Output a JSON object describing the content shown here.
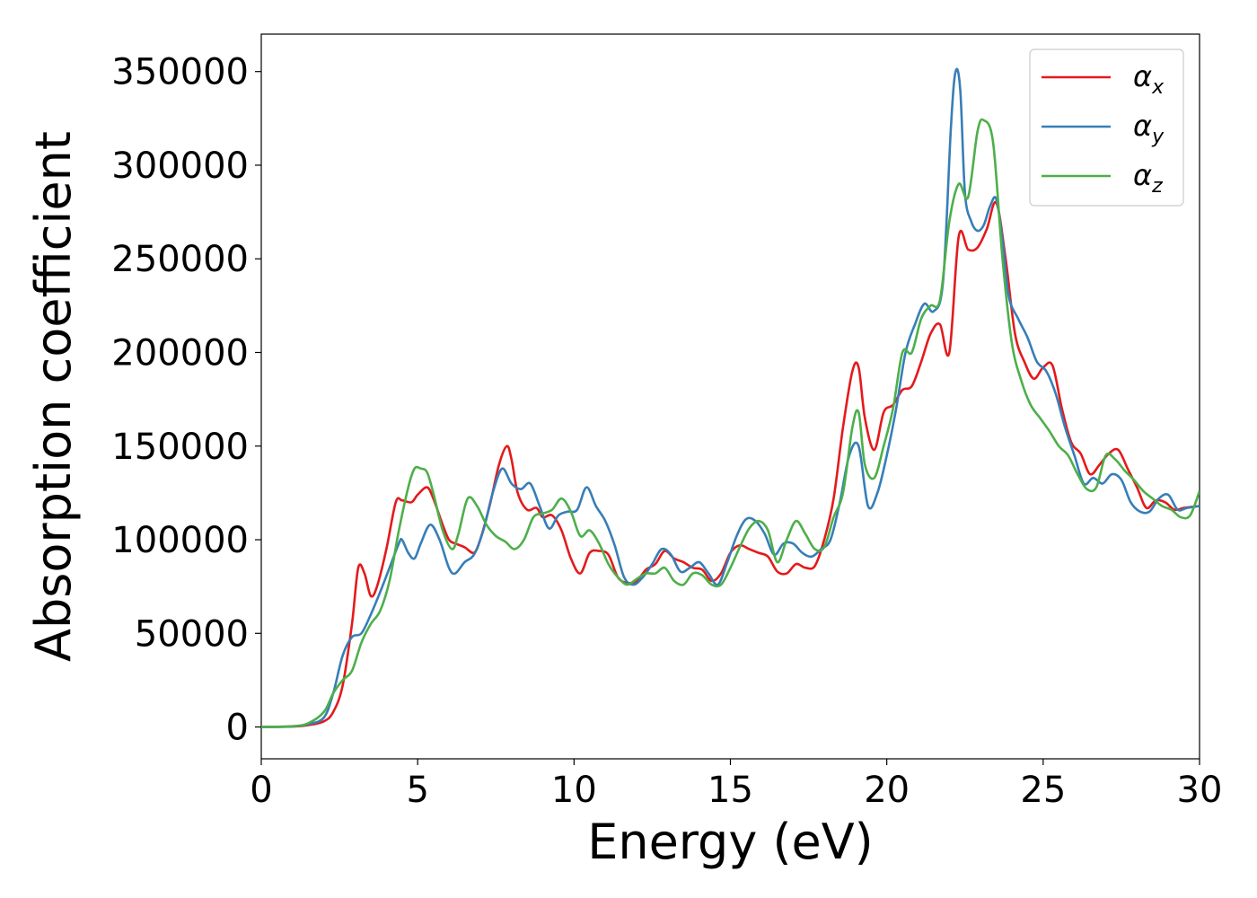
{
  "chart_data": {
    "type": "line",
    "title": "",
    "xlabel": "Energy (eV)",
    "ylabel": "Absorption coefficient",
    "xlim": [
      0,
      30
    ],
    "ylim": [
      -17000,
      370000
    ],
    "xticks": [
      0,
      5,
      10,
      15,
      20,
      25,
      30
    ],
    "yticks": [
      0,
      50000,
      100000,
      150000,
      200000,
      250000,
      300000,
      350000
    ],
    "xtick_labels": [
      "0",
      "5",
      "10",
      "15",
      "20",
      "25",
      "30"
    ],
    "ytick_labels": [
      "0",
      "50000",
      "100000",
      "150000",
      "200000",
      "250000",
      "300000",
      "350000"
    ],
    "grid": false,
    "legend_position": "top-right",
    "series": [
      {
        "name": "α",
        "subscript": "x",
        "color": "#e41a1c",
        "x": [
          0,
          1.0,
          1.5,
          2.0,
          2.3,
          2.6,
          2.9,
          3.1,
          3.3,
          3.5,
          3.7,
          4.0,
          4.3,
          4.5,
          4.8,
          5.0,
          5.3,
          5.5,
          5.8,
          6.0,
          6.2,
          6.5,
          6.8,
          7.0,
          7.3,
          7.6,
          7.85,
          8.0,
          8.2,
          8.5,
          8.8,
          9.0,
          9.3,
          9.6,
          9.9,
          10.2,
          10.5,
          10.8,
          11.1,
          11.4,
          11.7,
          12.0,
          12.3,
          12.6,
          12.9,
          13.2,
          13.5,
          13.8,
          14.1,
          14.4,
          14.7,
          15.0,
          15.3,
          15.6,
          15.9,
          16.2,
          16.5,
          16.8,
          17.1,
          17.4,
          17.7,
          18.0,
          18.3,
          18.6,
          18.9,
          19.1,
          19.3,
          19.6,
          19.9,
          20.2,
          20.5,
          20.8,
          21.1,
          21.4,
          21.7,
          22.0,
          22.3,
          22.6,
          22.9,
          23.2,
          23.5,
          23.8,
          24.1,
          24.4,
          24.7,
          25.0,
          25.3,
          25.6,
          25.9,
          26.2,
          26.5,
          26.8,
          27.1,
          27.4,
          27.7,
          28.0,
          28.3,
          28.6,
          28.9,
          29.2,
          29.5,
          30.0
        ],
        "values": [
          0,
          200,
          1000,
          3000,
          8000,
          22000,
          55000,
          85000,
          82000,
          70000,
          75000,
          95000,
          120000,
          121000,
          120000,
          124000,
          128000,
          122000,
          108000,
          100000,
          98000,
          96000,
          93000,
          100000,
          118000,
          140000,
          150000,
          143000,
          125000,
          116000,
          117000,
          112000,
          113000,
          105000,
          90000,
          82000,
          93000,
          94000,
          92000,
          80000,
          77000,
          78000,
          84000,
          87000,
          94000,
          90000,
          88000,
          85000,
          84000,
          78000,
          82000,
          93000,
          97000,
          95000,
          93000,
          91000,
          83000,
          82000,
          87000,
          85000,
          86000,
          100000,
          122000,
          160000,
          190000,
          192000,
          165000,
          148000,
          168000,
          172000,
          180000,
          182000,
          195000,
          210000,
          215000,
          200000,
          262000,
          255000,
          256000,
          266000,
          280000,
          250000,
          210000,
          195000,
          186000,
          192000,
          193000,
          170000,
          152000,
          146000,
          135000,
          140000,
          146000,
          148000,
          138000,
          128000,
          117000,
          121000,
          120000,
          116000,
          117000,
          118000
        ]
      },
      {
        "name": "α",
        "subscript": "y",
        "color": "#377eb8",
        "x": [
          0,
          1.0,
          1.5,
          2.0,
          2.3,
          2.6,
          2.9,
          3.2,
          3.5,
          3.8,
          4.1,
          4.4,
          4.5,
          4.7,
          4.9,
          5.1,
          5.4,
          5.7,
          6.0,
          6.2,
          6.5,
          6.8,
          7.1,
          7.4,
          7.7,
          8.0,
          8.3,
          8.6,
          8.9,
          9.2,
          9.5,
          9.8,
          10.1,
          10.4,
          10.7,
          11.0,
          11.3,
          11.6,
          11.9,
          12.2,
          12.5,
          12.8,
          13.1,
          13.4,
          13.7,
          14.0,
          14.3,
          14.6,
          14.9,
          15.2,
          15.5,
          15.8,
          16.1,
          16.4,
          16.7,
          17.0,
          17.3,
          17.6,
          17.9,
          18.2,
          18.5,
          18.8,
          19.1,
          19.4,
          19.7,
          20.0,
          20.3,
          20.6,
          20.9,
          21.2,
          21.5,
          21.8,
          22.05,
          22.2,
          22.35,
          22.5,
          22.7,
          22.9,
          23.1,
          23.3,
          23.5,
          23.7,
          23.9,
          24.2,
          24.5,
          24.8,
          25.1,
          25.4,
          25.7,
          26.0,
          26.3,
          26.6,
          26.9,
          27.2,
          27.5,
          27.8,
          28.1,
          28.4,
          28.7,
          29.0,
          29.3,
          29.6,
          30.0
        ],
        "values": [
          0,
          300,
          1500,
          5000,
          18000,
          38000,
          48000,
          50000,
          60000,
          72000,
          85000,
          98000,
          100000,
          93000,
          90000,
          98000,
          108000,
          100000,
          85000,
          82000,
          88000,
          92000,
          105000,
          125000,
          138000,
          130000,
          127000,
          130000,
          118000,
          106000,
          113000,
          115000,
          116000,
          128000,
          118000,
          110000,
          97000,
          80000,
          76000,
          80000,
          87000,
          95000,
          92000,
          83000,
          85000,
          88000,
          82000,
          76000,
          88000,
          102000,
          111000,
          110000,
          103000,
          92000,
          98000,
          98000,
          93000,
          91000,
          95000,
          100000,
          120000,
          145000,
          150000,
          118000,
          125000,
          145000,
          170000,
          200000,
          215000,
          226000,
          222000,
          238000,
          320000,
          350000,
          340000,
          285000,
          270000,
          265000,
          268000,
          278000,
          282000,
          260000,
          230000,
          218000,
          208000,
          195000,
          190000,
          178000,
          160000,
          145000,
          130000,
          133000,
          130000,
          135000,
          132000,
          120000,
          115000,
          115000,
          122000,
          124000,
          116000,
          117000,
          118000
        ]
      },
      {
        "name": "α",
        "subscript": "z",
        "color": "#4daf4a",
        "x": [
          0,
          1.0,
          1.5,
          2.0,
          2.3,
          2.6,
          2.9,
          3.2,
          3.5,
          3.8,
          4.1,
          4.4,
          4.7,
          4.9,
          5.1,
          5.3,
          5.5,
          5.8,
          6.1,
          6.3,
          6.6,
          6.9,
          7.2,
          7.5,
          7.8,
          8.1,
          8.4,
          8.7,
          9.0,
          9.3,
          9.6,
          9.9,
          10.2,
          10.5,
          10.8,
          11.1,
          11.4,
          11.7,
          12.0,
          12.3,
          12.6,
          12.9,
          13.2,
          13.5,
          13.8,
          14.1,
          14.4,
          14.7,
          15.0,
          15.3,
          15.6,
          15.9,
          16.2,
          16.5,
          16.8,
          17.1,
          17.4,
          17.7,
          18.0,
          18.3,
          18.6,
          18.9,
          19.1,
          19.3,
          19.6,
          19.9,
          20.2,
          20.5,
          20.8,
          21.1,
          21.4,
          21.7,
          22.0,
          22.3,
          22.6,
          22.9,
          23.1,
          23.4,
          23.7,
          24.0,
          24.3,
          24.6,
          24.9,
          25.2,
          25.5,
          25.8,
          26.1,
          26.4,
          26.7,
          27.0,
          27.3,
          27.6,
          27.9,
          28.2,
          28.5,
          28.8,
          29.1,
          29.4,
          29.7,
          30.0
        ],
        "values": [
          0,
          400,
          2000,
          8000,
          18000,
          25000,
          30000,
          45000,
          55000,
          62000,
          78000,
          105000,
          128000,
          138000,
          138000,
          136000,
          125000,
          105000,
          95000,
          103000,
          122000,
          118000,
          108000,
          102000,
          99000,
          95000,
          100000,
          112000,
          114000,
          116000,
          122000,
          115000,
          102000,
          105000,
          98000,
          87000,
          80000,
          76000,
          79000,
          82000,
          82000,
          85000,
          78000,
          76000,
          82000,
          81000,
          76000,
          76000,
          85000,
          96000,
          106000,
          110000,
          105000,
          88000,
          100000,
          110000,
          103000,
          95000,
          96000,
          112000,
          125000,
          160000,
          168000,
          140000,
          133000,
          150000,
          170000,
          200000,
          200000,
          218000,
          225000,
          228000,
          270000,
          290000,
          283000,
          318000,
          324000,
          312000,
          250000,
          205000,
          185000,
          172000,
          165000,
          158000,
          150000,
          145000,
          135000,
          127000,
          128000,
          145000,
          143000,
          137000,
          132000,
          126000,
          122000,
          118000,
          116000,
          112000,
          113000,
          126000
        ]
      }
    ]
  }
}
